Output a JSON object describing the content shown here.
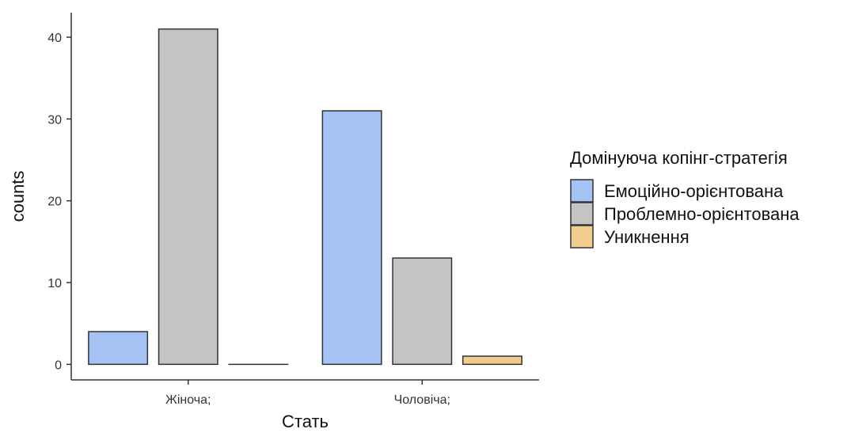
{
  "chart_data": {
    "type": "bar",
    "title": "",
    "xlabel": "Стать",
    "ylabel": "counts",
    "categories": [
      "Жіноча;",
      "Чоловіча;"
    ],
    "series": [
      {
        "name": "Емоційно-орієнтована",
        "values": [
          4,
          31
        ],
        "color": "#a4c2f4"
      },
      {
        "name": "Проблемно-орієнтована",
        "values": [
          41,
          13
        ],
        "color": "#c4c4c4"
      },
      {
        "name": "Уникнення",
        "values": [
          0,
          1
        ],
        "color": "#f2cc8f"
      }
    ],
    "ylim": [
      -1.9,
      43
    ],
    "yticks": [
      0,
      10,
      20,
      30,
      40
    ],
    "legend": {
      "title": "Домінуюча копінг-стратегія",
      "position": "right"
    },
    "grid": false,
    "bar_outline_color": "#333333"
  }
}
